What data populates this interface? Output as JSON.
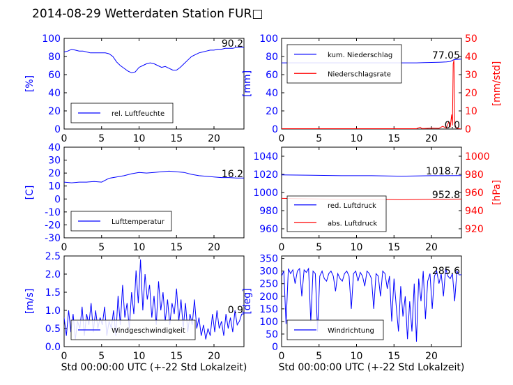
{
  "title": "2014-08-29 Wetterdaten Station FUR□",
  "xlabel": "Std 00:00:00 UTC (+-22 Std Lokalzeit)",
  "colors": {
    "primary": "#0000ff",
    "secondary": "#ff0000"
  },
  "chart_data": [
    {
      "type": "line",
      "ylabel": "[%]",
      "ylim": [
        0,
        100
      ],
      "yticks": [
        0,
        20,
        40,
        60,
        80,
        100
      ],
      "xlim": [
        0,
        24
      ],
      "xticks": [
        0,
        5,
        10,
        15,
        20
      ],
      "legend_loc": "lower-left",
      "last_value_label": "90.2",
      "series": [
        {
          "name": "rel. Luftfeuchte",
          "color": "#0000ff",
          "x": [
            0,
            0.5,
            1,
            1.5,
            2,
            2.5,
            3,
            3.5,
            4,
            4.5,
            5,
            5.5,
            6,
            6.5,
            7,
            7.5,
            8,
            8.5,
            9,
            9.5,
            10,
            10.5,
            11,
            11.5,
            12,
            12.5,
            13,
            13.5,
            14,
            14.5,
            15,
            15.5,
            16,
            16.5,
            17,
            17.5,
            18,
            18.5,
            19,
            19.5,
            20,
            20.5,
            21,
            21.5,
            22,
            22.5,
            23,
            23.5,
            24
          ],
          "y": [
            85,
            86,
            88,
            87,
            86,
            86,
            85,
            84,
            84,
            84,
            84,
            84,
            83,
            80,
            74,
            70,
            67,
            64,
            62,
            63,
            68,
            70,
            72,
            73,
            72,
            70,
            68,
            69,
            67,
            65,
            65,
            68,
            72,
            76,
            80,
            82,
            84,
            85,
            86,
            87,
            87,
            88,
            88,
            89,
            89,
            89,
            90,
            90,
            90.2
          ]
        }
      ]
    },
    {
      "type": "line",
      "ylabel": "[mm]",
      "ylabel_right": "[mm/std]",
      "ylim": [
        0,
        100
      ],
      "yticks": [
        0,
        20,
        40,
        60,
        80,
        100
      ],
      "ylim_right": [
        0,
        50
      ],
      "yticks_right": [
        0,
        10,
        20,
        30,
        40,
        50
      ],
      "xlim": [
        0,
        24
      ],
      "xticks": [
        0,
        5,
        10,
        15,
        20
      ],
      "legend_loc": "upper-left",
      "last_value_label": "77.05",
      "last_value_label_2": "0.0",
      "series": [
        {
          "name": "kum. Niederschlag",
          "color": "#0000ff",
          "axis": "left",
          "x": [
            0,
            2,
            4,
            6,
            8,
            10,
            12,
            14,
            16,
            18,
            19,
            20,
            21,
            22,
            22.5,
            23,
            24
          ],
          "y": [
            73,
            73,
            73,
            73,
            73,
            73,
            73,
            73,
            73,
            73,
            73.3,
            73.5,
            73.7,
            74,
            74.5,
            76.5,
            77.05
          ]
        },
        {
          "name": "Niederschlagsrate",
          "color": "#ff0000",
          "axis": "right",
          "x": [
            0,
            18,
            18.5,
            18.7,
            19,
            20,
            21,
            21.5,
            22,
            22.3,
            22.5,
            22.7,
            22.8,
            22.9,
            23,
            23.1,
            23.3,
            24
          ],
          "y": [
            0.2,
            0.2,
            1,
            0.3,
            0.3,
            0.5,
            0.4,
            1.5,
            0.5,
            4,
            1,
            8,
            2,
            36,
            38,
            3,
            0.5,
            0
          ]
        }
      ]
    },
    {
      "type": "line",
      "ylabel": "[C]",
      "ylim": [
        -30,
        40
      ],
      "yticks": [
        -30,
        -20,
        -10,
        0,
        10,
        20,
        30,
        40
      ],
      "xlim": [
        0,
        24
      ],
      "xticks": [
        0,
        5,
        10,
        15,
        20
      ],
      "legend_loc": "lower-left",
      "last_value_label": "16.2",
      "series": [
        {
          "name": "Lufttemperatur",
          "color": "#0000ff",
          "x": [
            0,
            1,
            2,
            3,
            4,
            5,
            6,
            7,
            8,
            9,
            10,
            11,
            12,
            13,
            14,
            15,
            16,
            17,
            18,
            19,
            20,
            21,
            22,
            23,
            24
          ],
          "y": [
            13,
            12.5,
            13,
            13,
            13.5,
            13,
            16,
            17,
            18,
            19.5,
            20.5,
            20,
            20.5,
            21,
            21.5,
            21,
            20.5,
            19,
            18,
            17.5,
            17,
            16.5,
            16.5,
            16.2,
            16.2
          ]
        }
      ]
    },
    {
      "type": "line",
      "ylabel_right": "[hPa]",
      "ylim": [
        950,
        1050
      ],
      "yticks": [
        960,
        980,
        1000,
        1020,
        1040
      ],
      "ylim_right": [
        910,
        1010
      ],
      "yticks_right": [
        920,
        940,
        960,
        980,
        1000
      ],
      "xlim": [
        0,
        24
      ],
      "xticks": [
        0,
        5,
        10,
        15,
        20
      ],
      "legend_loc": "lower-left",
      "last_value_label": "1018.7",
      "last_value_label_2": "952.8",
      "series": [
        {
          "name": "red. Luftdruck",
          "color": "#0000ff",
          "axis": "left",
          "x": [
            0,
            4,
            8,
            12,
            16,
            20,
            24
          ],
          "y": [
            1019.5,
            1019,
            1018.5,
            1018.5,
            1018,
            1018.5,
            1018.7
          ]
        },
        {
          "name": "abs. Luftdruck",
          "color": "#ff0000",
          "axis": "right",
          "x": [
            0,
            4,
            8,
            12,
            16,
            20,
            24
          ],
          "y": [
            953.5,
            953,
            952.5,
            952.5,
            952,
            952.5,
            952.8
          ]
        }
      ]
    },
    {
      "type": "line",
      "ylabel": "[m/s]",
      "ylim": [
        0,
        2.5
      ],
      "yticks": [
        0.0,
        0.5,
        1.0,
        1.5,
        2.0,
        2.5
      ],
      "xlim": [
        0,
        24
      ],
      "xticks": [
        0,
        5,
        10,
        15,
        20
      ],
      "legend_loc": "lower-left",
      "last_value_label": "0.9",
      "series": [
        {
          "name": "Windgeschwindigkeit",
          "color": "#0000ff",
          "x": [
            0,
            0.3,
            0.6,
            0.9,
            1.2,
            1.5,
            1.8,
            2.1,
            2.4,
            2.7,
            3,
            3.3,
            3.6,
            3.9,
            4.2,
            4.5,
            4.8,
            5.1,
            5.4,
            5.7,
            6,
            6.3,
            6.6,
            6.9,
            7.2,
            7.5,
            7.8,
            8.1,
            8.4,
            8.7,
            9,
            9.3,
            9.6,
            9.9,
            10.2,
            10.5,
            10.8,
            11.1,
            11.4,
            11.7,
            12,
            12.3,
            12.6,
            12.9,
            13.2,
            13.5,
            13.8,
            14.1,
            14.4,
            14.7,
            15,
            15.3,
            15.6,
            15.9,
            16.2,
            16.5,
            16.8,
            17.1,
            17.4,
            17.7,
            18,
            18.3,
            18.6,
            18.9,
            19.2,
            19.5,
            19.8,
            20.1,
            20.4,
            20.7,
            21,
            21.3,
            21.6,
            21.9,
            22.2,
            22.5,
            22.8,
            23.1,
            23.4,
            23.7,
            24
          ],
          "y": [
            0.8,
            0.3,
            1.0,
            0.4,
            0.9,
            0.2,
            0.7,
            0.5,
            1.1,
            0.3,
            0.9,
            0.6,
            1.2,
            0.4,
            1.0,
            0.5,
            0.8,
            0.6,
            1.1,
            0.3,
            0.7,
            0.5,
            1.0,
            0.3,
            1.4,
            0.6,
            1.7,
            0.8,
            1.2,
            0.5,
            1.5,
            0.9,
            2.1,
            1.2,
            2.4,
            1.0,
            2.0,
            1.3,
            1.7,
            0.8,
            1.4,
            0.6,
            1.8,
            1.0,
            1.5,
            0.7,
            1.3,
            0.6,
            1.2,
            0.9,
            1.6,
            0.7,
            1.3,
            0.5,
            1.2,
            0.4,
            0.9,
            0.6,
            1.3,
            0.5,
            0.8,
            0.3,
            0.6,
            0.2,
            0.5,
            0.3,
            0.9,
            0.4,
            1.0,
            0.5,
            0.7,
            0.3,
            0.9,
            0.5,
            0.8,
            0.4,
            1.0,
            0.6,
            0.7,
            0.9,
            0.9
          ]
        }
      ]
    },
    {
      "type": "line",
      "ylabel": "[deg]",
      "ylim": [
        0,
        360
      ],
      "yticks": [
        0,
        50,
        100,
        150,
        200,
        250,
        300,
        350
      ],
      "xlim": [
        0,
        24
      ],
      "xticks": [
        0,
        5,
        10,
        15,
        20
      ],
      "legend_loc": "lower-left",
      "last_value_label": "285.6",
      "series": [
        {
          "name": "Windrichtung",
          "color": "#0000ff",
          "x": [
            0,
            0.3,
            0.6,
            0.9,
            1.2,
            1.5,
            1.8,
            2.1,
            2.4,
            2.7,
            3,
            3.3,
            3.6,
            3.9,
            4.2,
            4.5,
            4.8,
            5.1,
            5.4,
            5.7,
            6,
            6.3,
            6.6,
            6.9,
            7.2,
            7.5,
            7.8,
            8.1,
            8.4,
            8.7,
            9,
            9.3,
            9.6,
            9.9,
            10.2,
            10.5,
            10.8,
            11.1,
            11.4,
            11.7,
            12,
            12.3,
            12.6,
            12.9,
            13.2,
            13.5,
            13.8,
            14.1,
            14.4,
            14.7,
            15,
            15.3,
            15.6,
            15.9,
            16.2,
            16.5,
            16.8,
            17.1,
            17.4,
            17.7,
            18,
            18.3,
            18.6,
            18.9,
            19.2,
            19.5,
            19.8,
            20.1,
            20.4,
            20.7,
            21,
            21.3,
            21.6,
            21.9,
            22.2,
            22.5,
            22.8,
            23.1,
            23.4,
            23.7,
            24
          ],
          "y": [
            280,
            300,
            90,
            310,
            290,
            305,
            250,
            300,
            310,
            200,
            305,
            295,
            310,
            100,
            300,
            290,
            60,
            280,
            300,
            270,
            260,
            290,
            300,
            280,
            220,
            290,
            270,
            260,
            290,
            300,
            280,
            150,
            290,
            300,
            260,
            295,
            280,
            240,
            300,
            290,
            270,
            150,
            290,
            280,
            200,
            300,
            290,
            230,
            280,
            100,
            270,
            160,
            60,
            240,
            120,
            200,
            30,
            180,
            60,
            250,
            20,
            270,
            180,
            300,
            110,
            260,
            290,
            150,
            280,
            300,
            250,
            290,
            200,
            310,
            280,
            270,
            290,
            180,
            300,
            285,
            285.6
          ]
        }
      ]
    }
  ]
}
